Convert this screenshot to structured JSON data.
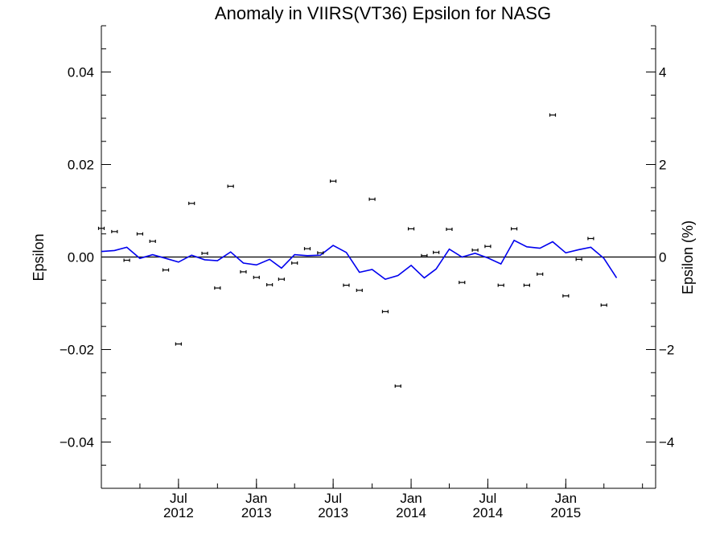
{
  "chart_data": {
    "type": "scatter",
    "title": "Anomaly in VIIRS(VT36) Epsilon for NASG",
    "ylabel": "Epsilon",
    "y2label": "Epsilon (%)",
    "xlim": [
      "2012-01-01",
      "2015-08-01"
    ],
    "ylim": [
      -0.05,
      0.05
    ],
    "y2lim": [
      -5,
      5
    ],
    "x_ticks": [
      {
        "date": "2012-07-01",
        "line1": "Jul",
        "line2": "2012"
      },
      {
        "date": "2013-01-01",
        "line1": "Jan",
        "line2": "2013"
      },
      {
        "date": "2013-07-01",
        "line1": "Jul",
        "line2": "2013"
      },
      {
        "date": "2014-01-01",
        "line1": "Jan",
        "line2": "2014"
      },
      {
        "date": "2014-07-01",
        "line1": "Jul",
        "line2": "2014"
      },
      {
        "date": "2015-01-01",
        "line1": "Jan",
        "line2": "2015"
      }
    ],
    "y_ticks": [
      {
        "value": 0.04,
        "label": "0.04"
      },
      {
        "value": 0.02,
        "label": "0.02"
      },
      {
        "value": 0.0,
        "label": "0.00"
      },
      {
        "value": -0.02,
        "label": "−0.02"
      },
      {
        "value": -0.04,
        "label": "−0.04"
      }
    ],
    "y2_ticks": [
      {
        "value": 4,
        "label": "4"
      },
      {
        "value": 2,
        "label": "2"
      },
      {
        "value": 0,
        "label": "0"
      },
      {
        "value": -2,
        "label": "−2"
      },
      {
        "value": -4,
        "label": "−4"
      }
    ],
    "grid": false,
    "zero_line": true,
    "points": [
      {
        "x": "2012-01-01",
        "y": 0.0062
      },
      {
        "x": "2012-02-01",
        "y": 0.0055
      },
      {
        "x": "2012-03-01",
        "y": -0.0007
      },
      {
        "x": "2012-04-01",
        "y": 0.005
      },
      {
        "x": "2012-05-01",
        "y": 0.0034
      },
      {
        "x": "2012-06-01",
        "y": -0.0028
      },
      {
        "x": "2012-07-01",
        "y": -0.0188
      },
      {
        "x": "2012-08-01",
        "y": 0.0116
      },
      {
        "x": "2012-09-01",
        "y": 0.0008
      },
      {
        "x": "2012-10-01",
        "y": -0.0067
      },
      {
        "x": "2012-11-01",
        "y": 0.0153
      },
      {
        "x": "2012-12-01",
        "y": -0.0032
      },
      {
        "x": "2013-01-01",
        "y": -0.0044
      },
      {
        "x": "2013-02-01",
        "y": -0.006
      },
      {
        "x": "2013-03-01",
        "y": -0.0048
      },
      {
        "x": "2013-04-01",
        "y": -0.0013
      },
      {
        "x": "2013-05-01",
        "y": 0.0018
      },
      {
        "x": "2013-06-01",
        "y": 0.0009
      },
      {
        "x": "2013-07-01",
        "y": 0.0164
      },
      {
        "x": "2013-08-01",
        "y": -0.0061
      },
      {
        "x": "2013-09-01",
        "y": -0.0072
      },
      {
        "x": "2013-10-01",
        "y": 0.0125
      },
      {
        "x": "2013-11-01",
        "y": -0.0118
      },
      {
        "x": "2013-12-01",
        "y": -0.0279
      },
      {
        "x": "2014-01-01",
        "y": 0.0061
      },
      {
        "x": "2014-02-01",
        "y": 0.0003
      },
      {
        "x": "2014-03-01",
        "y": 0.001
      },
      {
        "x": "2014-04-01",
        "y": 0.006
      },
      {
        "x": "2014-05-01",
        "y": -0.0055
      },
      {
        "x": "2014-06-01",
        "y": 0.0015
      },
      {
        "x": "2014-07-01",
        "y": 0.0023
      },
      {
        "x": "2014-08-01",
        "y": -0.0061
      },
      {
        "x": "2014-09-01",
        "y": 0.0061
      },
      {
        "x": "2014-10-01",
        "y": -0.0061
      },
      {
        "x": "2014-11-01",
        "y": -0.0037
      },
      {
        "x": "2014-12-01",
        "y": 0.0307
      },
      {
        "x": "2015-01-01",
        "y": -0.0084
      },
      {
        "x": "2015-02-01",
        "y": -0.0005
      },
      {
        "x": "2015-03-01",
        "y": 0.004
      },
      {
        "x": "2015-04-01",
        "y": -0.0104
      }
    ],
    "line": [
      {
        "x": "2012-01-01",
        "y": 0.0012
      },
      {
        "x": "2012-02-01",
        "y": 0.0014
      },
      {
        "x": "2012-03-01",
        "y": 0.0021
      },
      {
        "x": "2012-04-01",
        "y": -0.0003
      },
      {
        "x": "2012-05-01",
        "y": 0.0005
      },
      {
        "x": "2012-06-01",
        "y": -0.0003
      },
      {
        "x": "2012-07-01",
        "y": -0.0011
      },
      {
        "x": "2012-08-01",
        "y": 0.0004
      },
      {
        "x": "2012-09-01",
        "y": -0.0006
      },
      {
        "x": "2012-10-01",
        "y": -0.0008
      },
      {
        "x": "2012-11-01",
        "y": 0.0011
      },
      {
        "x": "2012-12-01",
        "y": -0.0013
      },
      {
        "x": "2013-01-01",
        "y": -0.0017
      },
      {
        "x": "2013-02-01",
        "y": -0.0005
      },
      {
        "x": "2013-03-01",
        "y": -0.0024
      },
      {
        "x": "2013-04-01",
        "y": 0.0005
      },
      {
        "x": "2013-05-01",
        "y": 0.0003
      },
      {
        "x": "2013-06-01",
        "y": 0.0004
      },
      {
        "x": "2013-07-01",
        "y": 0.0025
      },
      {
        "x": "2013-08-01",
        "y": 0.001
      },
      {
        "x": "2013-09-01",
        "y": -0.0033
      },
      {
        "x": "2013-10-01",
        "y": -0.0027
      },
      {
        "x": "2013-11-01",
        "y": -0.0048
      },
      {
        "x": "2013-12-01",
        "y": -0.004
      },
      {
        "x": "2014-01-01",
        "y": -0.0018
      },
      {
        "x": "2014-02-01",
        "y": -0.0045
      },
      {
        "x": "2014-03-01",
        "y": -0.0026
      },
      {
        "x": "2014-04-01",
        "y": 0.0017
      },
      {
        "x": "2014-05-01",
        "y": 0.0
      },
      {
        "x": "2014-06-01",
        "y": 0.0008
      },
      {
        "x": "2014-07-01",
        "y": -0.0002
      },
      {
        "x": "2014-08-01",
        "y": -0.0015
      },
      {
        "x": "2014-09-01",
        "y": 0.0036
      },
      {
        "x": "2014-10-01",
        "y": 0.0022
      },
      {
        "x": "2014-11-01",
        "y": 0.0019
      },
      {
        "x": "2014-12-01",
        "y": 0.0033
      },
      {
        "x": "2015-01-01",
        "y": 0.0009
      },
      {
        "x": "2015-02-01",
        "y": 0.0016
      },
      {
        "x": "2015-03-01",
        "y": 0.0021
      },
      {
        "x": "2015-04-01",
        "y": -0.0003
      },
      {
        "x": "2015-05-01",
        "y": -0.0045
      }
    ],
    "colors": {
      "line": "#0000ee",
      "points": "#000000",
      "axes": "#000000"
    }
  }
}
